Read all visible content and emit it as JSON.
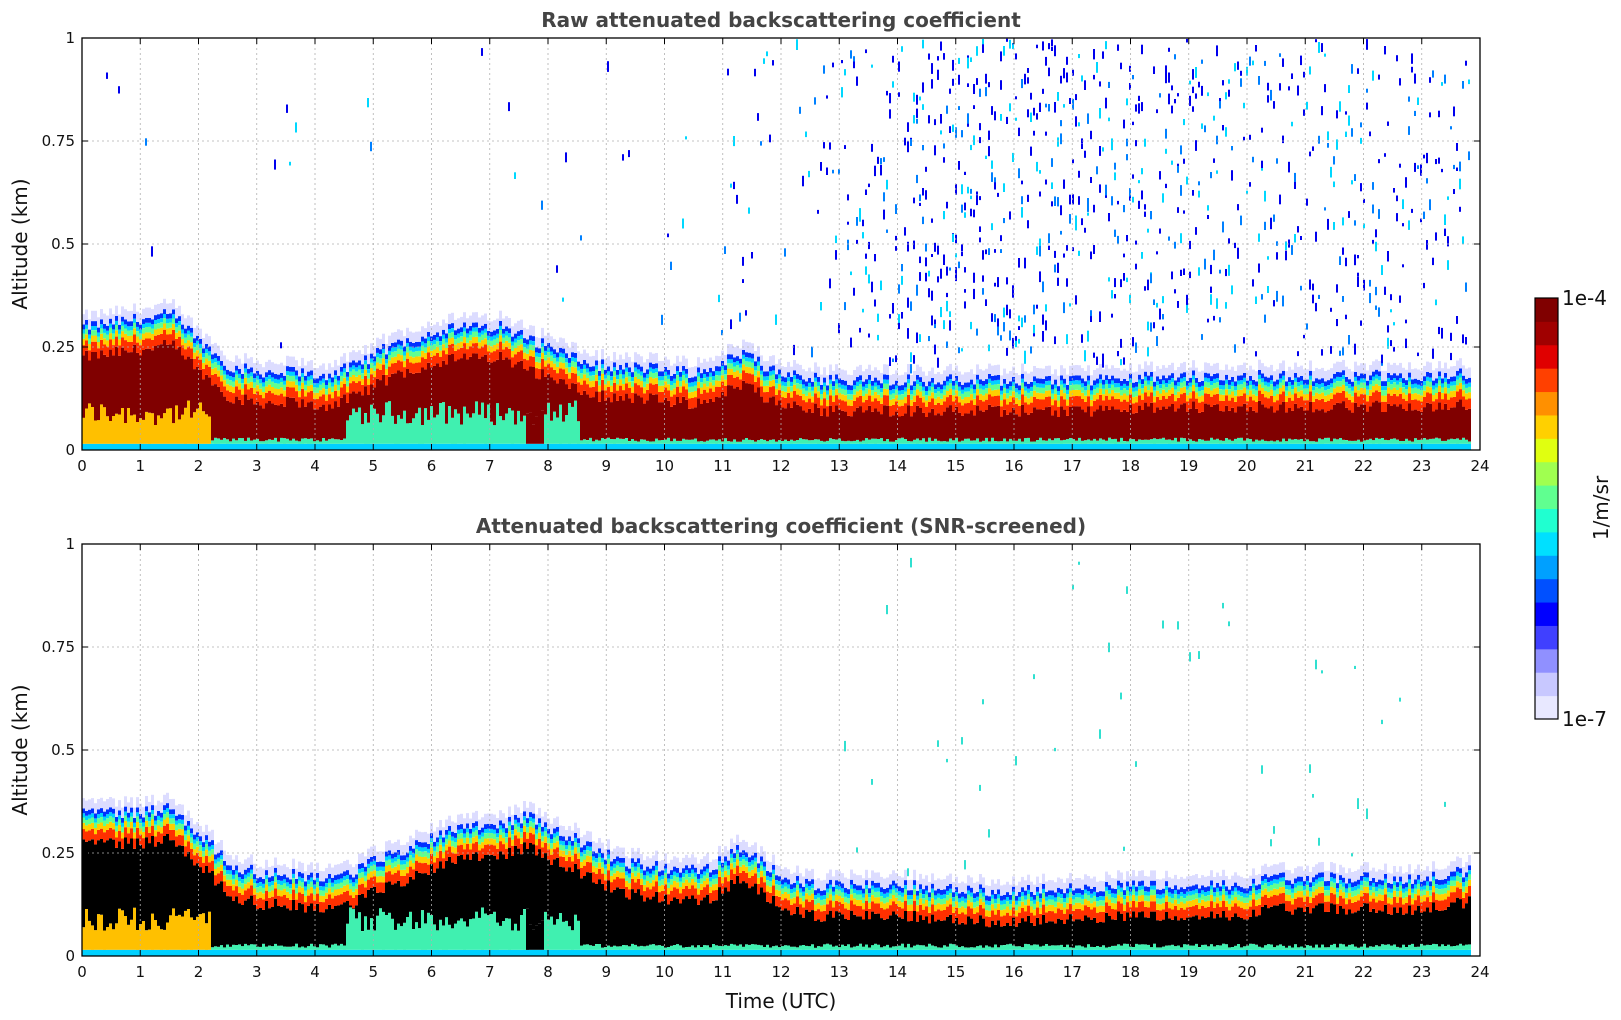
{
  "chart_data": [
    {
      "type": "heatmap",
      "title": "Raw attenuated backscattering coefficient",
      "xlabel": "",
      "ylabel": "Altitude (km)",
      "xlim": [
        0,
        24
      ],
      "ylim": [
        0,
        1
      ],
      "xticks": [
        "0",
        "1",
        "2",
        "3",
        "4",
        "5",
        "6",
        "7",
        "8",
        "9",
        "10",
        "11",
        "12",
        "13",
        "14",
        "15",
        "16",
        "17",
        "18",
        "19",
        "20",
        "21",
        "22",
        "23",
        "24"
      ],
      "yticks": [
        "0",
        "0.25",
        "0.5",
        "0.75",
        "1"
      ],
      "grid": true,
      "saturation": "dark-red",
      "top_of_layer_km": [
        0.3,
        0.31,
        0.32,
        0.33,
        0.26,
        0.2,
        0.19,
        0.19,
        0.18,
        0.2,
        0.24,
        0.27,
        0.29,
        0.3,
        0.3,
        0.27,
        0.24,
        0.21,
        0.2,
        0.2,
        0.19,
        0.19,
        0.24,
        0.2,
        0.18,
        0.17,
        0.17,
        0.17,
        0.17,
        0.17,
        0.17,
        0.17,
        0.17,
        0.17,
        0.17,
        0.17,
        0.18,
        0.18,
        0.18,
        0.18,
        0.18,
        0.18,
        0.18,
        0.18,
        0.18,
        0.18,
        0.18,
        0.19
      ],
      "noise_density": [
        0.02,
        0.04,
        0.03,
        0.02,
        0.01,
        0.02,
        0.01,
        0.04,
        0.01,
        0.01,
        0.02,
        0.01,
        0.01,
        0.02,
        0.02,
        0.03,
        0.06,
        0.02,
        0.01,
        0.02,
        0.05,
        0.01,
        0.3,
        0.1,
        0.15,
        0.3,
        0.5,
        0.6,
        0.9,
        1.0,
        1.0,
        0.9,
        0.9,
        0.85,
        0.8,
        0.75,
        0.7,
        0.7,
        0.6,
        0.55,
        0.55,
        0.5,
        0.6,
        0.6,
        0.5,
        0.5,
        0.45,
        0.4
      ]
    },
    {
      "type": "heatmap",
      "title": "Attenuated backscattering coefficient (SNR-screened)",
      "xlabel": "Time (UTC)",
      "ylabel": "Altitude (km)",
      "xlim": [
        0,
        24
      ],
      "ylim": [
        0,
        1
      ],
      "xticks": [
        "0",
        "1",
        "2",
        "3",
        "4",
        "5",
        "6",
        "7",
        "8",
        "9",
        "10",
        "11",
        "12",
        "13",
        "14",
        "15",
        "16",
        "17",
        "18",
        "19",
        "20",
        "21",
        "22",
        "23",
        "24"
      ],
      "yticks": [
        "0",
        "0.25",
        "0.5",
        "0.75",
        "1"
      ],
      "grid": true,
      "saturation": "black",
      "top_of_layer_km": [
        0.35,
        0.35,
        0.35,
        0.36,
        0.29,
        0.22,
        0.2,
        0.2,
        0.19,
        0.2,
        0.24,
        0.26,
        0.3,
        0.32,
        0.32,
        0.34,
        0.3,
        0.27,
        0.23,
        0.22,
        0.21,
        0.21,
        0.26,
        0.22,
        0.18,
        0.17,
        0.17,
        0.17,
        0.17,
        0.16,
        0.16,
        0.16,
        0.16,
        0.16,
        0.17,
        0.17,
        0.17,
        0.17,
        0.17,
        0.17,
        0.19,
        0.19,
        0.19,
        0.19,
        0.19,
        0.19,
        0.2,
        0.21
      ],
      "noise_density": [
        0,
        0,
        0,
        0,
        0,
        0,
        0,
        0,
        0,
        0,
        0,
        0,
        0,
        0,
        0,
        0,
        0,
        0,
        0,
        0,
        0,
        0,
        0,
        0,
        0,
        0.02,
        0.02,
        0.04,
        0.04,
        0.06,
        0.04,
        0.04,
        0.02,
        0.03,
        0.05,
        0.04,
        0.03,
        0.02,
        0.02,
        0.02,
        0.02,
        0.02,
        0.03,
        0.02,
        0.02,
        0.02,
        0.01,
        0.01
      ]
    }
  ],
  "colorbar": {
    "max_label": "1e-4",
    "min_label": "1e-7",
    "unit_label": "1/m/sr",
    "colors": [
      "#e8e8ff",
      "#c8c8ff",
      "#9090ff",
      "#4040ff",
      "#0000ff",
      "#0050ff",
      "#00a0ff",
      "#00e0ff",
      "#20ffd0",
      "#60ff90",
      "#a0ff50",
      "#e0ff10",
      "#ffd000",
      "#ff9000",
      "#ff4000",
      "#e00000",
      "#a00000",
      "#800000"
    ]
  }
}
